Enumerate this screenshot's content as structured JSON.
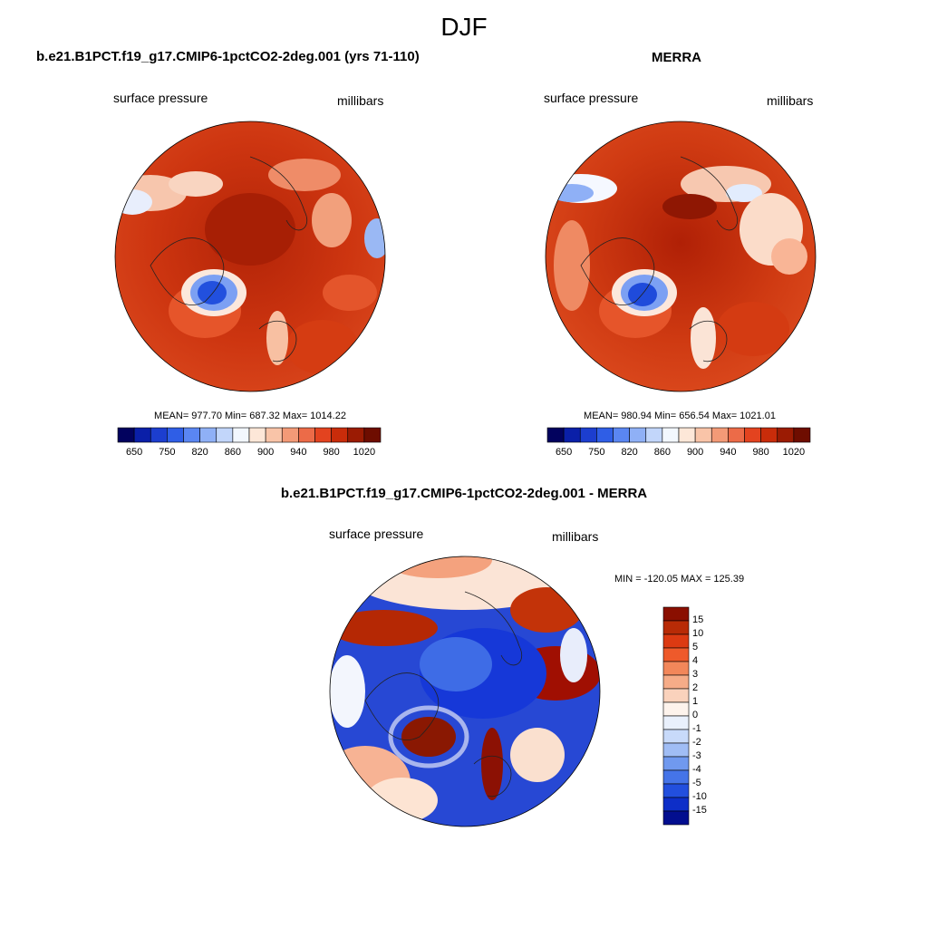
{
  "figure": {
    "title": "DJF"
  },
  "panels": [
    {
      "title": "b.e21.B1PCT.f19_g17.CMIP6-1pctCO2-2deg.001 (yrs 71-110)",
      "left_label": "surface pressure",
      "right_label": "millibars",
      "stats": "MEAN= 977.70  Min= 687.32  Max= 1014.22"
    },
    {
      "title": "MERRA",
      "left_label": "surface pressure",
      "right_label": "millibars",
      "stats": "MEAN= 980.94  Min= 656.54  Max= 1021.01"
    },
    {
      "title": "b.e21.B1PCT.f19_g17.CMIP6-1pctCO2-2deg.001 - MERRA",
      "left_label": "surface pressure",
      "right_label": "millibars",
      "stats": "MIN = -120.05 MAX = 125.39"
    }
  ],
  "colorbar_abs": {
    "colors": [
      "#02025e",
      "#0a1fa8",
      "#1c3ecf",
      "#2f5ee6",
      "#5a86f2",
      "#8fb0f6",
      "#c2d6fa",
      "#f2f7fe",
      "#fde7d8",
      "#f9c4a8",
      "#f39a77",
      "#ec6b48",
      "#e3431f",
      "#c92c0a",
      "#9b1b03",
      "#6e0d00"
    ],
    "ticks": [
      "650",
      "750",
      "820",
      "860",
      "900",
      "940",
      "980",
      "1020"
    ]
  },
  "colorbar_diff": {
    "colors": [
      "#8a0f00",
      "#b82b06",
      "#dc3a12",
      "#ee5a2b",
      "#f2875a",
      "#f6ac88",
      "#fad2bc",
      "#fdf3ec",
      "#e9f0fc",
      "#c8dafa",
      "#a0bdf5",
      "#7099ef",
      "#4574e8",
      "#224fde",
      "#0d2ec8",
      "#020e8f"
    ],
    "ticks": [
      "15",
      "10",
      "5",
      "4",
      "3",
      "2",
      "1",
      "0",
      "-1",
      "-2",
      "-3",
      "-4",
      "-5",
      "-10",
      "-15"
    ]
  }
}
